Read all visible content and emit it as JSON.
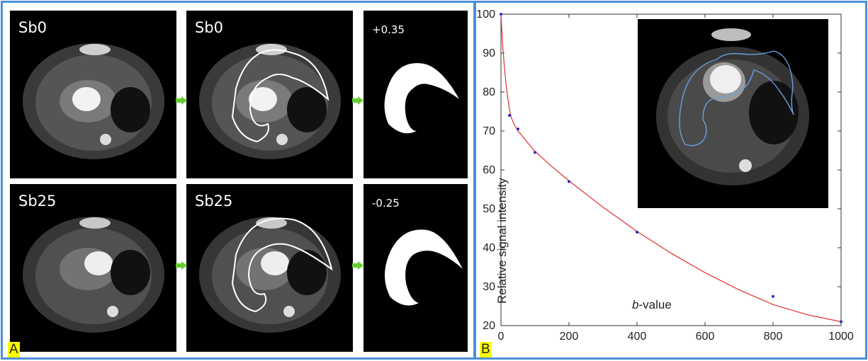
{
  "panel_a": {
    "letter": "A",
    "tiles": [
      {
        "label": "Sb0",
        "kind": "raw"
      },
      {
        "label": "Sb0",
        "kind": "roi"
      },
      {
        "label": "+0.35",
        "kind": "mask"
      },
      {
        "label": "Sb25",
        "kind": "raw"
      },
      {
        "label": "Sb25",
        "kind": "roi"
      },
      {
        "label": "-0.25",
        "kind": "mask"
      }
    ],
    "arrow_icon": "green-right-arrow-icon"
  },
  "panel_b": {
    "letter": "B"
  },
  "colors": {
    "frame": "#4a90d9",
    "fit_curve": "#e03030",
    "points": "#2a2ad0",
    "roi_outline_inset": "#6aa0e0",
    "arrow": "#66cc33",
    "letter_highlight": "#ffff00"
  },
  "chart_data": {
    "type": "scatter",
    "title": "",
    "xlabel": "b-value",
    "ylabel": "Relative signal intensity",
    "xlim": [
      0,
      1000
    ],
    "ylim": [
      20,
      100
    ],
    "xticks": [
      0,
      200,
      400,
      600,
      800,
      1000
    ],
    "yticks": [
      20,
      30,
      40,
      50,
      60,
      70,
      80,
      90,
      100
    ],
    "grid": false,
    "series": [
      {
        "type": "scatter",
        "x": [
          0,
          25,
          50,
          100,
          200,
          400,
          800,
          1000
        ],
        "y": [
          100,
          74,
          70.5,
          64.5,
          57,
          44,
          27.5,
          21
        ]
      },
      {
        "type": "line",
        "x": [
          0,
          5,
          10,
          15,
          20,
          25,
          30,
          40,
          50,
          60,
          80,
          100,
          150,
          200,
          300,
          400,
          500,
          600,
          700,
          800,
          900,
          1000
        ],
        "y": [
          100,
          92,
          86.5,
          82,
          78.5,
          75.5,
          73.5,
          71.5,
          70,
          69,
          66.8,
          64.8,
          60.8,
          57.2,
          50.4,
          44.2,
          38.6,
          33.6,
          29.2,
          25.4,
          22.8,
          21
        ]
      }
    ]
  }
}
